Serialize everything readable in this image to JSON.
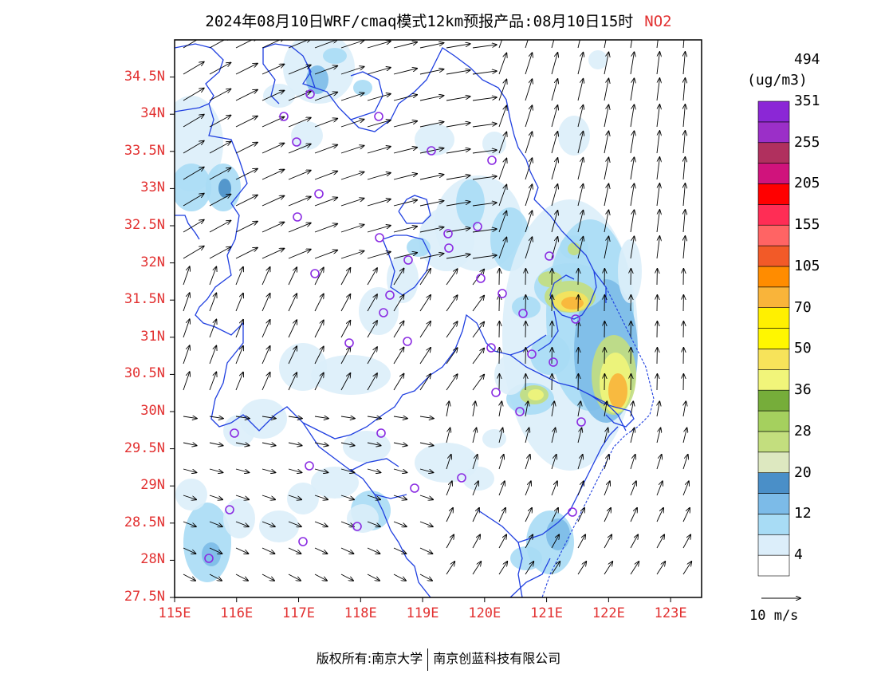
{
  "title": {
    "main": "2024年08月10日WRF/cmaq模式12km预报产品:08月10日15时",
    "species": "NO2",
    "species_color": "#e23030"
  },
  "map": {
    "lon_range": [
      115,
      123.5
    ],
    "lat_range": [
      27.5,
      35
    ],
    "lat_ticks": [
      "34.5N",
      "34N",
      "33.5N",
      "33N",
      "32.5N",
      "32N",
      "31.5N",
      "31N",
      "30.5N",
      "30N",
      "29.5N",
      "29N",
      "28.5N",
      "28N",
      "27.5N"
    ],
    "lon_ticks": [
      "115E",
      "116E",
      "117E",
      "118E",
      "119E",
      "120E",
      "121E",
      "122E",
      "123E"
    ],
    "label_color": "#e23030",
    "boundary_color": "#1f3fe0",
    "station_color": "#8a2be2"
  },
  "legend": {
    "unit": "(ug/m3)",
    "labels": [
      "4",
      "12",
      "20",
      "28",
      "36",
      "50",
      "70",
      "105",
      "155",
      "205",
      "255",
      "351",
      "494"
    ],
    "colors": [
      "#ffffff",
      "#dceefa",
      "#a8dcf5",
      "#7cbbe8",
      "#4a8fc8",
      "#dde8c0",
      "#c3de7e",
      "#a5d05e",
      "#76ad3a",
      "#f1f57a",
      "#f7e35a",
      "#fff700",
      "#fff000",
      "#f9b43a",
      "#ff8c00",
      "#f25a28",
      "#ff6464",
      "#ff2d55",
      "#ff0000",
      "#d0137c",
      "#b0305e",
      "#9b2fc8",
      "#8b27d6"
    ]
  },
  "wind_reference": {
    "label": "10 m/s"
  },
  "footer": {
    "left": "版权所有:南京大学",
    "right": "南京创蓝科技有限公司"
  }
}
